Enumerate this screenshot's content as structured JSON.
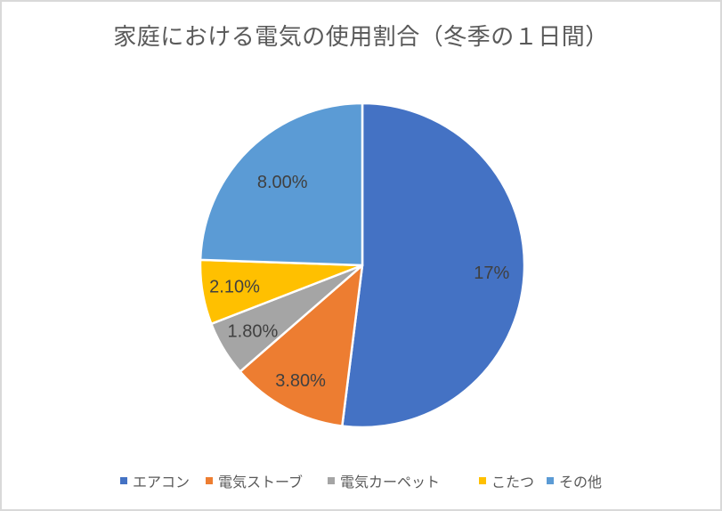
{
  "title": "家庭における電気の使用割合（冬季の１日間）",
  "chart_data": {
    "type": "pie",
    "title": "家庭における電気の使用割合（冬季の１日間）",
    "direction": "clockwise",
    "start_angle_deg": 0,
    "legend_position": "bottom",
    "total_of_values": 32.7,
    "series": [
      {
        "name": "エアコン",
        "value": 17,
        "label": "17%",
        "color": "#4472C4",
        "label_radius_fraction": 0.8
      },
      {
        "name": "電気ストーブ",
        "value": 3.8,
        "label": "3.80%",
        "color": "#ED7D31",
        "label_radius_fraction": 0.81
      },
      {
        "name": "電気カーペット",
        "value": 1.8,
        "label": "1.80%",
        "color": "#A5A5A5",
        "label_radius_fraction": 0.79
      },
      {
        "name": "こたつ",
        "value": 2.1,
        "label": "2.10%",
        "color": "#FFC000",
        "label_radius_fraction": 0.8
      },
      {
        "name": "その他",
        "value": 8,
        "label": "8.00%",
        "color": "#5B9BD5",
        "label_radius_fraction": 0.71
      }
    ],
    "label_color": "#404040",
    "title_color": "#595959",
    "legend_text_color": "#595959",
    "slice_border_color": "#FFFFFF"
  }
}
